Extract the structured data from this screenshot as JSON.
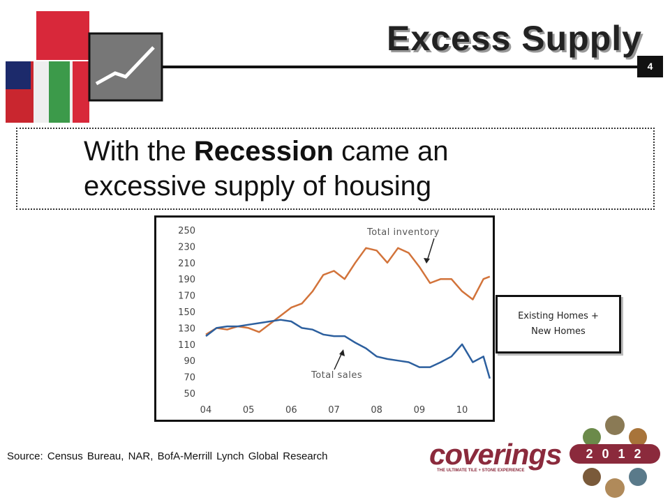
{
  "header": {
    "title": "Excess Supply",
    "page_number": "4"
  },
  "headline": [
    "With the",
    "Recession",
    "came an",
    "excessive supply of housing"
  ],
  "note": [
    "Existing Homes +",
    "New Homes"
  ],
  "source": "Source: Census Bureau, NAR, BofA-Merrill Lynch Global Research",
  "logo": {
    "name": "coverings",
    "tagline": "THE ULTIMATE TILE + STONE EXPERIENCE",
    "year": "2 0 1 2"
  },
  "chart_data": {
    "type": "line",
    "annotations": [
      "Total inventory",
      "Total sales"
    ],
    "x": [
      2004.0,
      2004.25,
      2004.5,
      2004.75,
      2005.0,
      2005.25,
      2005.5,
      2005.75,
      2006.0,
      2006.25,
      2006.5,
      2006.75,
      2007.0,
      2007.25,
      2007.5,
      2007.75,
      2008.0,
      2008.25,
      2008.5,
      2008.75,
      2009.0,
      2009.25,
      2009.5,
      2009.75,
      2010.0,
      2010.25,
      2010.5,
      2010.65
    ],
    "series": [
      {
        "name": "Total inventory",
        "color": "#d2733a",
        "values": [
          122,
          130,
          128,
          132,
          130,
          125,
          135,
          145,
          155,
          160,
          175,
          195,
          200,
          190,
          210,
          228,
          225,
          210,
          228,
          222,
          205,
          185,
          190,
          190,
          175,
          165,
          190,
          193
        ]
      },
      {
        "name": "Total sales",
        "color": "#2c5f9e",
        "values": [
          120,
          130,
          132,
          132,
          134,
          136,
          138,
          140,
          138,
          130,
          128,
          122,
          120,
          120,
          112,
          105,
          95,
          92,
          90,
          88,
          82,
          82,
          88,
          95,
          110,
          88,
          95,
          68
        ]
      }
    ],
    "xlim": [
      2003.87,
      2010.62
    ],
    "xticks": [
      {
        "value": 2004,
        "label": "04"
      },
      {
        "value": 2005,
        "label": "05"
      },
      {
        "value": 2006,
        "label": "06"
      },
      {
        "value": 2007,
        "label": "07"
      },
      {
        "value": 2008,
        "label": "08"
      },
      {
        "value": 2009,
        "label": "09"
      },
      {
        "value": 2010,
        "label": "10"
      }
    ],
    "ylim": [
      50,
      250
    ],
    "yticks": [
      50,
      70,
      90,
      110,
      130,
      150,
      170,
      190,
      210,
      230,
      250
    ],
    "grid": false
  }
}
